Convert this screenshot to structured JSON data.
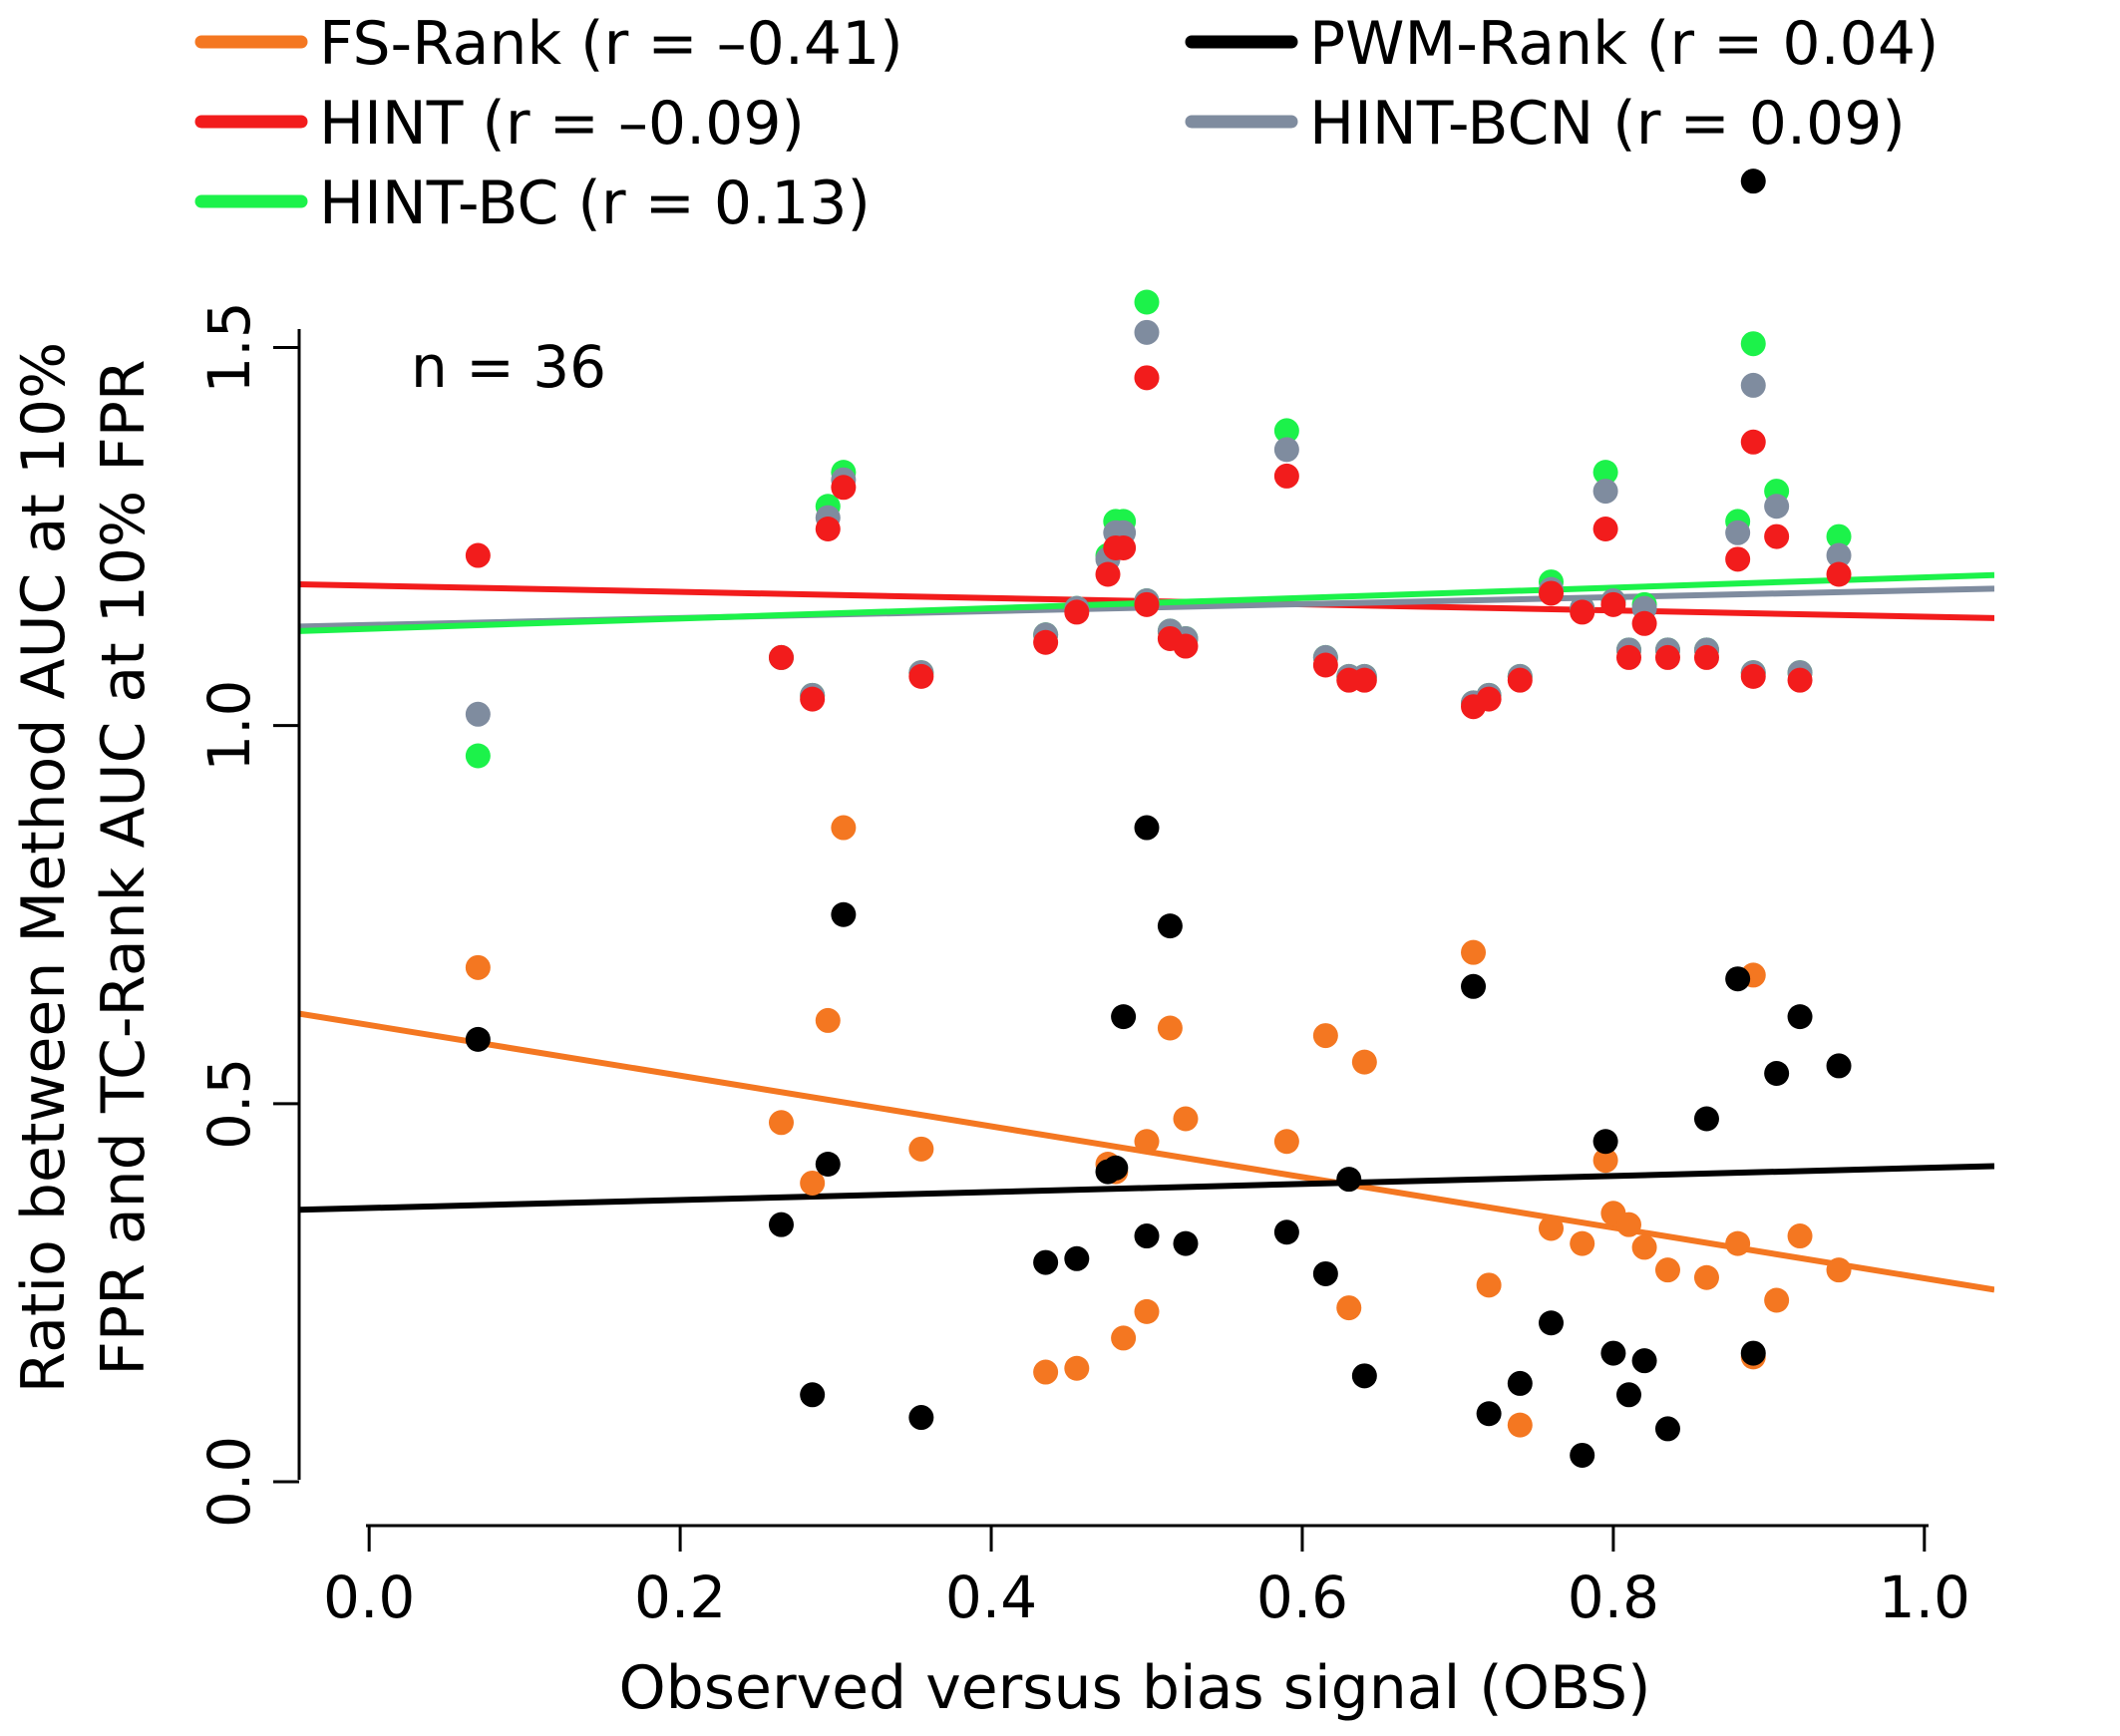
{
  "chart_data": {
    "type": "scatter",
    "title": "",
    "xlabel": "Observed versus bias signal (OBS)",
    "ylabel_line1": "Ratio between Method AUC at 10%",
    "ylabel_line2": "FPR and TC-Rank AUC at 10% FPR",
    "annotation": "n = 36",
    "xlim": [
      -0.045,
      1.045
    ],
    "ylim": [
      0.0,
      1.56
    ],
    "xticks": [
      0.0,
      0.2,
      0.4,
      0.6,
      0.8,
      1.0
    ],
    "xtick_labels": [
      "0.0",
      "0.2",
      "0.4",
      "0.6",
      "0.8",
      "1.0"
    ],
    "yticks": [
      0.0,
      0.5,
      1.0,
      1.5
    ],
    "ytick_labels": [
      "0.0",
      "0.5",
      "1.0",
      "1.5"
    ],
    "grid": false,
    "legend_placement": "top",
    "legend": [
      {
        "label": "FS-Rank (r = –0.41)",
        "color": "#F47721"
      },
      {
        "label": "PWM-Rank (r = 0.04)",
        "color": "#000000"
      },
      {
        "label": "HINT (r = –0.09)",
        "color": "#F21C1C"
      },
      {
        "label": "HINT-BCN (r = 0.09)",
        "color": "#7F8C9F"
      },
      {
        "label": "HINT-BC (r = 0.13)",
        "color": "#1CF24A"
      }
    ],
    "x": [
      0.07,
      0.265,
      0.285,
      0.295,
      0.305,
      0.355,
      0.435,
      0.455,
      0.475,
      0.485,
      0.5,
      0.515,
      0.525,
      0.59,
      0.615,
      0.63,
      0.64,
      0.71,
      0.72,
      0.74,
      0.76,
      0.78,
      0.795,
      0.8,
      0.81,
      0.82,
      0.835,
      0.86,
      0.88,
      0.89,
      0.905,
      0.92,
      0.945,
      0.48,
      0.5,
      0.89
    ],
    "series": [
      {
        "name": "FS-Rank",
        "color": "#F47721",
        "y": [
          0.68,
          0.475,
          0.395,
          0.61,
          0.865,
          0.44,
          0.145,
          0.15,
          0.42,
          0.19,
          0.45,
          0.6,
          0.48,
          0.45,
          0.59,
          0.23,
          0.555,
          0.7,
          0.26,
          0.075,
          0.335,
          0.315,
          0.425,
          0.355,
          0.34,
          0.31,
          0.28,
          0.27,
          0.315,
          0.165,
          0.24,
          0.325,
          0.28,
          0.41,
          0.225,
          0.67
        ],
        "fit": [
          0.604,
          -0.335
        ]
      },
      {
        "name": "PWM-Rank",
        "color": "#000000",
        "y": [
          0.585,
          0.34,
          0.115,
          0.42,
          0.75,
          0.085,
          0.29,
          0.295,
          0.41,
          0.615,
          0.325,
          0.735,
          0.315,
          0.33,
          0.275,
          0.4,
          0.14,
          0.655,
          0.09,
          0.13,
          0.21,
          0.035,
          0.45,
          0.17,
          0.115,
          0.16,
          0.07,
          0.48,
          0.665,
          0.17,
          0.54,
          0.615,
          0.55,
          0.415,
          0.865,
          1.72
        ],
        "fit": [
          0.362,
          0.053
        ]
      },
      {
        "name": "HINT",
        "color": "#F21C1C",
        "y": [
          1.225,
          1.09,
          1.035,
          1.26,
          1.315,
          1.065,
          1.11,
          1.15,
          1.2,
          1.235,
          1.16,
          1.115,
          1.105,
          1.33,
          1.08,
          1.06,
          1.06,
          1.025,
          1.035,
          1.06,
          1.175,
          1.15,
          1.26,
          1.16,
          1.09,
          1.135,
          1.09,
          1.09,
          1.22,
          1.065,
          1.25,
          1.06,
          1.2,
          1.235,
          1.46,
          1.375
        ],
        "fit": [
          1.185,
          -0.041
        ]
      },
      {
        "name": "HINT-BCN",
        "color": "#7F8C9F",
        "y": [
          1.015,
          1.09,
          1.04,
          1.275,
          1.325,
          1.07,
          1.12,
          1.155,
          1.22,
          1.255,
          1.165,
          1.125,
          1.115,
          1.365,
          1.09,
          1.065,
          1.065,
          1.03,
          1.04,
          1.065,
          1.18,
          1.155,
          1.31,
          1.165,
          1.1,
          1.155,
          1.1,
          1.1,
          1.255,
          1.07,
          1.29,
          1.07,
          1.225,
          1.255,
          1.52,
          1.45
        ],
        "fit": [
          1.133,
          0.046
        ]
      },
      {
        "name": "HINT-BC",
        "color": "#1CF24A",
        "y": [
          0.96,
          1.09,
          1.04,
          1.29,
          1.335,
          1.07,
          1.12,
          1.155,
          1.225,
          1.27,
          1.165,
          1.125,
          1.115,
          1.39,
          1.09,
          1.065,
          1.065,
          1.03,
          1.04,
          1.065,
          1.19,
          1.155,
          1.335,
          1.165,
          1.1,
          1.16,
          1.1,
          1.1,
          1.27,
          1.07,
          1.31,
          1.07,
          1.25,
          1.27,
          1.56,
          1.505
        ],
        "fit": [
          1.128,
          0.068
        ]
      }
    ]
  }
}
